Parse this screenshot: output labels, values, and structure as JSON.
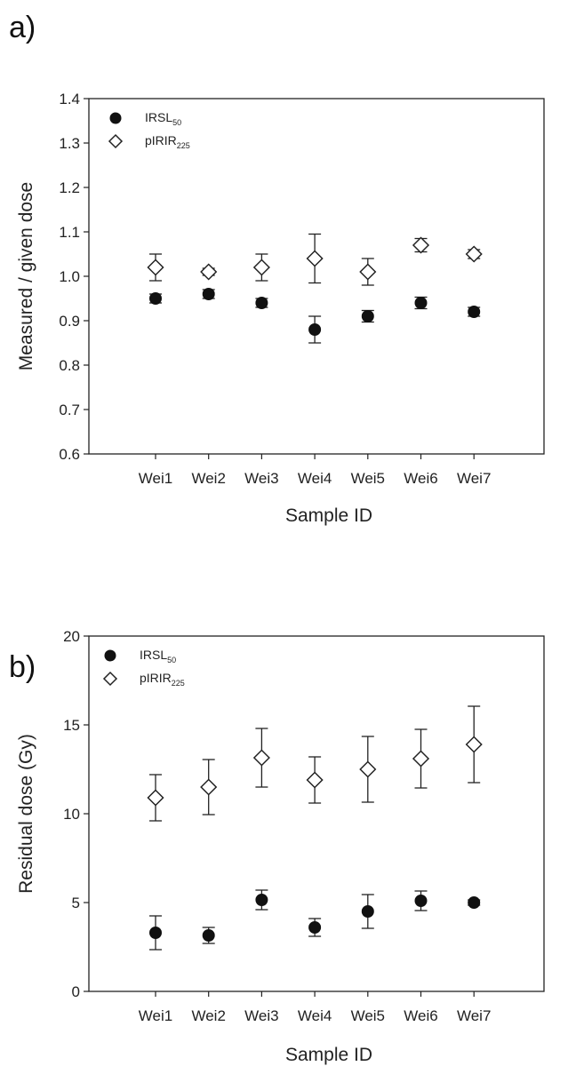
{
  "chart_data": [
    {
      "panel_label": "a)",
      "type": "scatter",
      "xlabel": "Sample ID",
      "ylabel": "Measured / given dose",
      "ylim": [
        0.6,
        1.4
      ],
      "yticks": [
        "0.6",
        "0.7",
        "0.8",
        "0.9",
        "1.0",
        "1.1",
        "1.2",
        "1.3",
        "1.4"
      ],
      "categories": [
        "Wei1",
        "Wei2",
        "Wei3",
        "Wei4",
        "Wei5",
        "Wei6",
        "Wei7"
      ],
      "legend_position": "top-left",
      "series": [
        {
          "name_main": "IRSL",
          "name_sub": "50",
          "marker": "filled-circle",
          "values": [
            0.95,
            0.96,
            0.94,
            0.88,
            0.91,
            0.94,
            0.92
          ],
          "errors": [
            0.01,
            0.01,
            0.01,
            0.03,
            0.013,
            0.013,
            0.01
          ]
        },
        {
          "name_main": "pIRIR",
          "name_sub": "225",
          "marker": "open-diamond",
          "values": [
            1.02,
            1.01,
            1.02,
            1.04,
            1.01,
            1.07,
            1.05
          ],
          "errors": [
            0.03,
            0.008,
            0.03,
            0.055,
            0.03,
            0.015,
            0.01
          ]
        }
      ]
    },
    {
      "panel_label": "b)",
      "type": "scatter",
      "xlabel": "Sample ID",
      "ylabel": "Residual dose (Gy)",
      "ylim": [
        0,
        20
      ],
      "yticks": [
        "0",
        "5",
        "10",
        "15",
        "20"
      ],
      "categories": [
        "Wei1",
        "Wei2",
        "Wei3",
        "Wei4",
        "Wei5",
        "Wei6",
        "Wei7"
      ],
      "legend_position": "top-left",
      "series": [
        {
          "name_main": "IRSL",
          "name_sub": "50",
          "marker": "filled-circle",
          "values": [
            3.3,
            3.15,
            5.15,
            3.6,
            4.5,
            5.1,
            5.0
          ],
          "errors": [
            0.95,
            0.45,
            0.55,
            0.5,
            0.95,
            0.55,
            0.15
          ]
        },
        {
          "name_main": "pIRIR",
          "name_sub": "225",
          "marker": "open-diamond",
          "values": [
            10.9,
            11.5,
            13.15,
            11.9,
            12.5,
            13.1,
            13.9
          ],
          "errors": [
            1.3,
            1.55,
            1.65,
            1.3,
            1.85,
            1.65,
            2.15
          ]
        }
      ]
    }
  ]
}
